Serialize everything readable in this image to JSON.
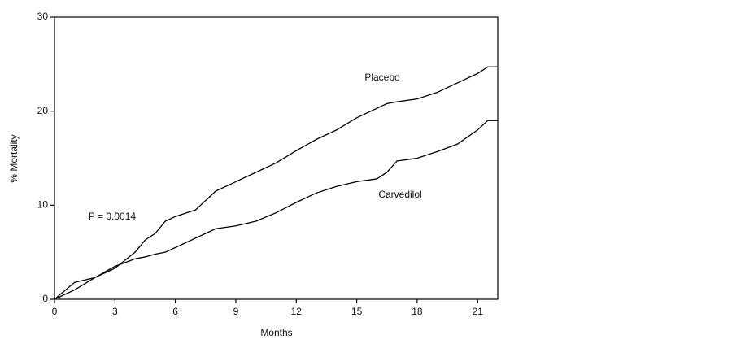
{
  "chart_data": {
    "type": "line",
    "xlabel": "Months",
    "ylabel": "% Mortality",
    "annotations": [
      "Placebo",
      "Carvedilol",
      "P = 0.0014"
    ],
    "x": [
      0,
      1,
      2,
      3,
      4,
      4.5,
      5,
      5.5,
      6,
      7,
      8,
      9,
      10,
      11,
      12,
      13,
      14,
      15,
      16,
      16.5,
      17,
      18,
      19,
      20,
      21,
      21.5,
      22
    ],
    "series": [
      {
        "name": "Placebo",
        "color": "#000000",
        "values": [
          0,
          1,
          2.3,
          3.3,
          5,
          6.3,
          7,
          8.3,
          8.8,
          9.5,
          11.5,
          12.5,
          13.5,
          14.5,
          15.8,
          17,
          18,
          19.3,
          20.3,
          20.8,
          21,
          21.3,
          22,
          23,
          24,
          24.7,
          24.7
        ]
      },
      {
        "name": "Carvedilol",
        "color": "#000000",
        "values": [
          0,
          1.8,
          2.3,
          3.5,
          4.3,
          4.5,
          4.8,
          5,
          5.5,
          6.5,
          7.5,
          7.8,
          8.3,
          9.2,
          10.3,
          11.3,
          12,
          12.5,
          12.8,
          13.5,
          14.7,
          15,
          15.7,
          16.5,
          18,
          19,
          19
        ]
      }
    ],
    "xlim": [
      0,
      22
    ],
    "xticks": [
      0,
      3,
      6,
      9,
      12,
      15,
      18,
      21
    ],
    "ylim": [
      0,
      30
    ],
    "yticks": [
      0,
      10,
      20,
      30
    ]
  }
}
